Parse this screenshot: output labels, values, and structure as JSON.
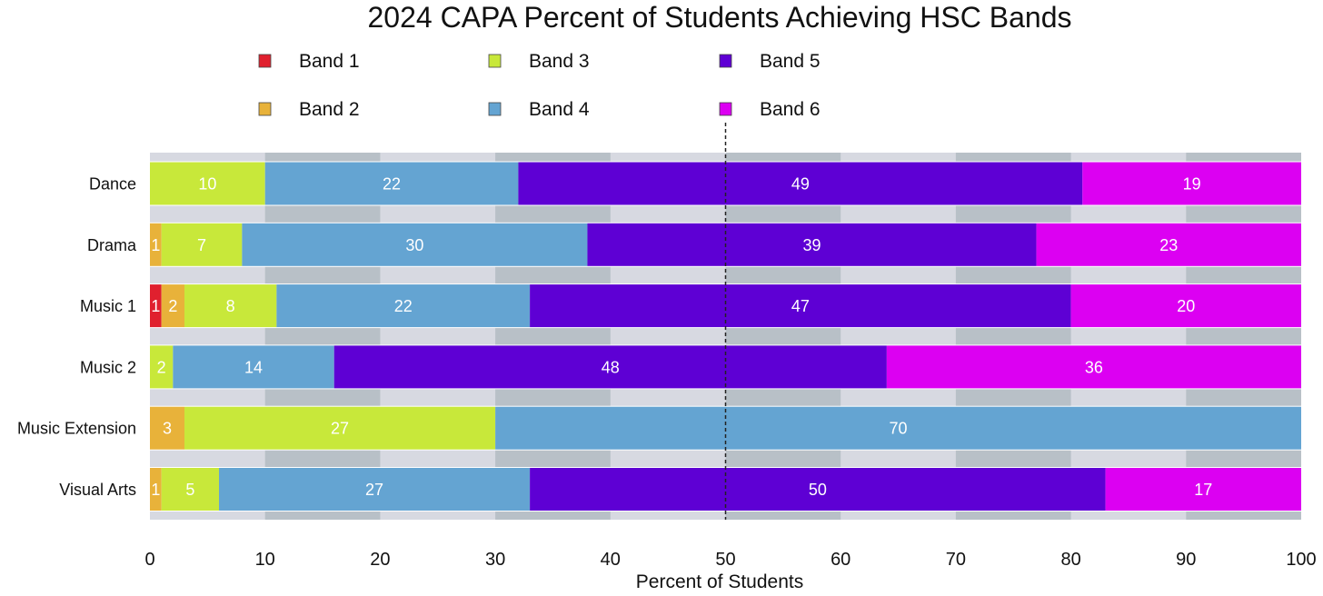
{
  "chart_data": {
    "type": "bar",
    "orientation": "horizontal",
    "stacked": true,
    "title": "2024 CAPA Percent of Students Achieving HSC Bands",
    "xlabel": "Percent of Students",
    "ylabel": "",
    "xlim": [
      0,
      100
    ],
    "xticks": [
      0,
      10,
      20,
      30,
      40,
      50,
      60,
      70,
      80,
      90,
      100
    ],
    "reference_line": 50,
    "categories": [
      "Dance",
      "Drama",
      "Music 1",
      "Music 2",
      "Music Extension",
      "Visual Arts"
    ],
    "series": [
      {
        "name": "Band 1",
        "color": "#e0202e",
        "values": [
          0,
          0,
          1,
          0,
          0,
          0
        ]
      },
      {
        "name": "Band 2",
        "color": "#e8b23a",
        "values": [
          0,
          1,
          2,
          0,
          3,
          1
        ]
      },
      {
        "name": "Band 3",
        "color": "#c8e83a",
        "values": [
          10,
          7,
          8,
          2,
          27,
          5
        ]
      },
      {
        "name": "Band 4",
        "color": "#64a4d2",
        "values": [
          22,
          30,
          22,
          14,
          70,
          27
        ]
      },
      {
        "name": "Band 5",
        "color": "#5e00d4",
        "values": [
          49,
          39,
          47,
          48,
          0,
          50
        ]
      },
      {
        "name": "Band 6",
        "color": "#dc00f2",
        "values": [
          19,
          23,
          20,
          36,
          0,
          17
        ]
      }
    ]
  }
}
